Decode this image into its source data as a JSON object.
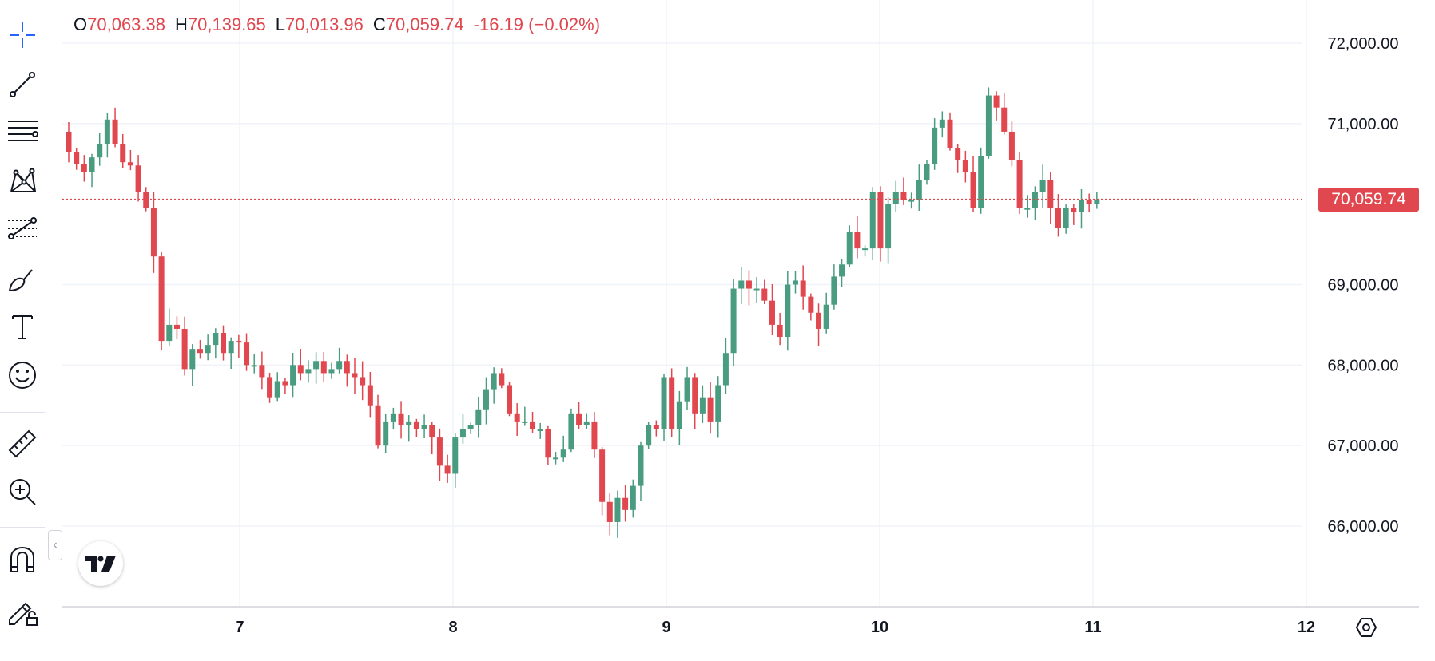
{
  "toolbar": {
    "tools": [
      {
        "name": "crosshair-icon"
      },
      {
        "name": "trend-line-icon"
      },
      {
        "name": "horizontal-lines-icon"
      },
      {
        "name": "pattern-icon"
      },
      {
        "name": "fib-retracement-icon"
      },
      {
        "name": "brush-icon"
      },
      {
        "name": "text-icon"
      },
      {
        "name": "emoji-icon"
      },
      {
        "name": "ruler-icon"
      },
      {
        "name": "zoom-in-icon"
      },
      {
        "name": "magnet-icon"
      },
      {
        "name": "lock-drawings-icon"
      }
    ]
  },
  "legend": {
    "o_label": "O",
    "o_value": "70,063.38",
    "h_label": "H",
    "h_value": "70,139.65",
    "l_label": "L",
    "l_value": "70,013.96",
    "c_label": "C",
    "c_value": "70,059.74",
    "change": "-16.19 (−0.02%)"
  },
  "price_badge": "70,059.74",
  "colors": {
    "up": "#4a9c80",
    "down": "#e0474f",
    "grid": "#f0f3fa",
    "axis_text": "#131722"
  },
  "chart_data": {
    "type": "candlestick",
    "title": "",
    "last_price": 70059.74,
    "ylim": [
      65000,
      72500
    ],
    "xlim": [
      6.15,
      12.05
    ],
    "y_ticks": [
      {
        "value": 66000,
        "label": "66,000.00"
      },
      {
        "value": 67000,
        "label": "67,000.00"
      },
      {
        "value": 68000,
        "label": "68,000.00"
      },
      {
        "value": 69000,
        "label": "69,000.00"
      },
      {
        "value": 71000,
        "label": "71,000.00"
      },
      {
        "value": 72000,
        "label": "72,000.00"
      }
    ],
    "x_ticks": [
      {
        "value": 7,
        "label": "7"
      },
      {
        "value": 8,
        "label": "8"
      },
      {
        "value": 9,
        "label": "9"
      },
      {
        "value": 10,
        "label": "10"
      },
      {
        "value": 11,
        "label": "11"
      },
      {
        "value": 12,
        "label": "12"
      }
    ],
    "closes": [
      70650,
      70500,
      70400,
      70580,
      70750,
      71050,
      70750,
      70520,
      70480,
      70150,
      69950,
      69350,
      68300,
      68500,
      68450,
      67950,
      68200,
      68150,
      68250,
      68400,
      68150,
      68300,
      68280,
      68000,
      68000,
      67850,
      67600,
      67800,
      67750,
      68000,
      67900,
      67950,
      68050,
      67900,
      67950,
      68050,
      67900,
      67850,
      67750,
      67500,
      67000,
      67300,
      67400,
      67250,
      67300,
      67200,
      67250,
      67100,
      66750,
      66650,
      67100,
      67200,
      67250,
      67450,
      67700,
      67900,
      67750,
      67400,
      67300,
      67300,
      67200,
      67200,
      66850,
      66850,
      66950,
      67400,
      67250,
      67300,
      66950,
      66300,
      66050,
      66350,
      66200,
      66500,
      67000,
      67250,
      67200,
      67850,
      67200,
      67550,
      67850,
      67400,
      67600,
      67300,
      67750,
      68150,
      68950,
      69050,
      68950,
      68950,
      68800,
      68500,
      68350,
      69000,
      69050,
      68850,
      68650,
      68450,
      68750,
      69100,
      69250,
      69650,
      69450,
      69450,
      70150,
      69450,
      70000,
      70150,
      70050,
      70050,
      70300,
      70500,
      70950,
      71050,
      70700,
      70550,
      70400,
      69950,
      70600,
      71350,
      71200,
      70900,
      70550,
      69950,
      69950,
      70150,
      70300,
      69950,
      69700,
      69950,
      69900,
      70050,
      70000,
      70059.74
    ]
  }
}
